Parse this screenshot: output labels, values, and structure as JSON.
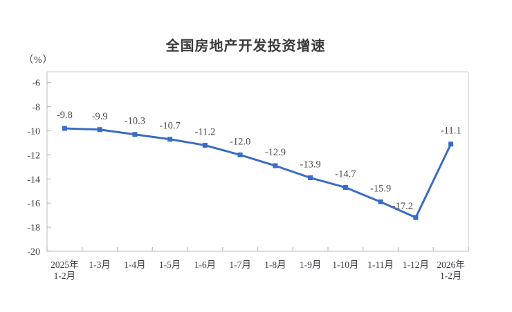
{
  "chart_data": {
    "type": "line",
    "title": "全国房地产开发投资增速",
    "unit_label": "（%）",
    "categories": [
      "2025年\n1-2月",
      "1-3月",
      "1-4月",
      "1-5月",
      "1-6月",
      "1-7月",
      "1-8月",
      "1-9月",
      "1-10月",
      "1-11月",
      "1-12月",
      "2026年\n1-2月"
    ],
    "values": [
      -9.8,
      -9.9,
      -10.3,
      -10.7,
      -11.2,
      -12.0,
      -12.9,
      -13.9,
      -14.7,
      -15.9,
      -17.2,
      -11.1
    ],
    "data_labels": [
      "-9.8",
      "-9.9",
      "-10.3",
      "-10.7",
      "-11.2",
      "-12.0",
      "-12.9",
      "-13.9",
      "-14.7",
      "-15.9",
      "-17.2",
      "-11.1"
    ],
    "yticks": [
      -6,
      -8,
      -10,
      -12,
      -14,
      -16,
      -18,
      -20
    ],
    "ylim": [
      -20,
      -5.1
    ],
    "grid": false,
    "legend": "none",
    "marker": "square",
    "colors": {
      "line": "#3a6bc5",
      "marker": "#3a6bc5",
      "border_light": "#dcdcdc",
      "axis": "#c6c6c6",
      "tick": "#bdbdbd",
      "axis_text": "#3e3e46",
      "data_label_text": "#4d4a45"
    }
  }
}
